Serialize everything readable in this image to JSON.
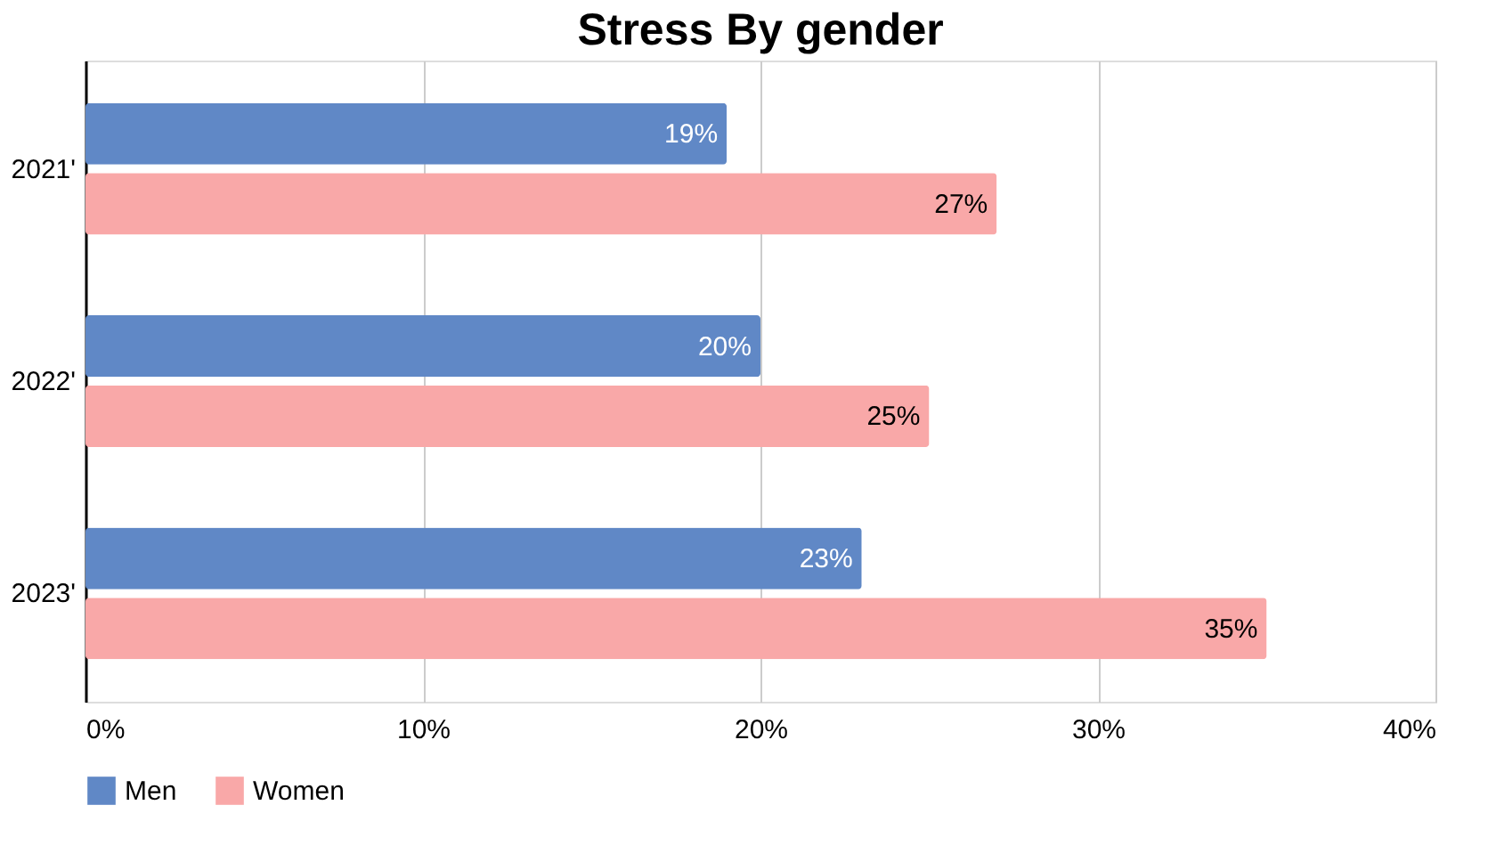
{
  "chart_data": {
    "type": "bar",
    "orientation": "horizontal",
    "title": "Stress By gender",
    "categories": [
      "2021'",
      "2022'",
      "2023'"
    ],
    "series": [
      {
        "name": "Men",
        "color": "#6088c6",
        "values": [
          19,
          20,
          23
        ],
        "value_labels": [
          "19%",
          "20%",
          "23%"
        ]
      },
      {
        "name": "Women",
        "color": "#f9a8a8",
        "values": [
          27,
          25,
          35
        ],
        "value_labels": [
          "27%",
          "25%",
          "35%"
        ]
      }
    ],
    "xlim": [
      0,
      40
    ],
    "xticks": [
      {
        "value": 0,
        "label": "0%"
      },
      {
        "value": 10,
        "label": "10%"
      },
      {
        "value": 20,
        "label": "20%"
      },
      {
        "value": 30,
        "label": "30%"
      },
      {
        "value": 40,
        "label": "40%"
      }
    ],
    "grid": "x",
    "legend": "bottom"
  }
}
